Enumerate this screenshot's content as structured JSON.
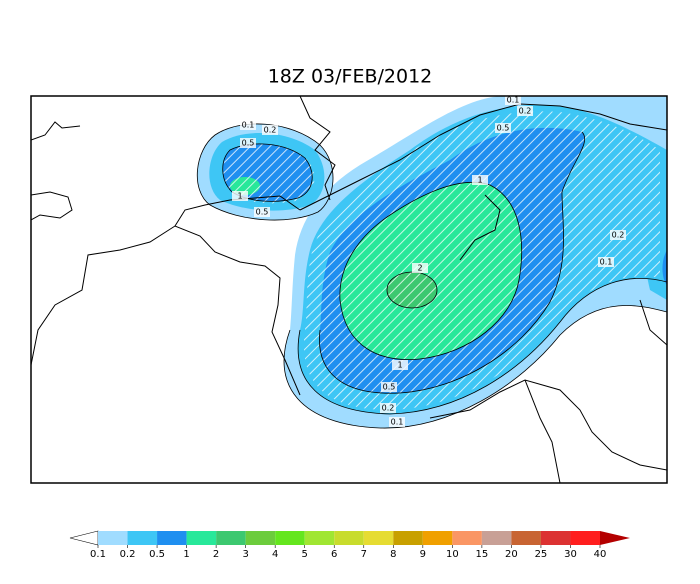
{
  "title": "18Z 03/FEB/2012",
  "colorbar": {
    "levels": [
      0.1,
      0.2,
      0.5,
      1,
      2,
      3,
      4,
      5,
      6,
      7,
      8,
      9,
      10,
      15,
      20,
      25,
      30,
      40
    ],
    "colors": [
      "#a0dcff",
      "#3ec6f5",
      "#1f8ff0",
      "#28e89a",
      "#3cc870",
      "#6ccc3c",
      "#64e61e",
      "#a0e632",
      "#c8dc2d",
      "#e6dc32",
      "#c8a000",
      "#f0a000",
      "#fa9664",
      "#c8a096",
      "#c86432",
      "#dc3232",
      "#ff1e1e"
    ],
    "under_color": "#ffffff",
    "over_color": "#b40000"
  },
  "contour_labels": [
    "0.1",
    "0.2",
    "0.5",
    "1",
    "2",
    "0.2",
    "0.1",
    "1",
    "0.5",
    "0.2",
    "0.1",
    "0.1",
    "0.2",
    "0.5",
    "1",
    "0.5"
  ]
}
